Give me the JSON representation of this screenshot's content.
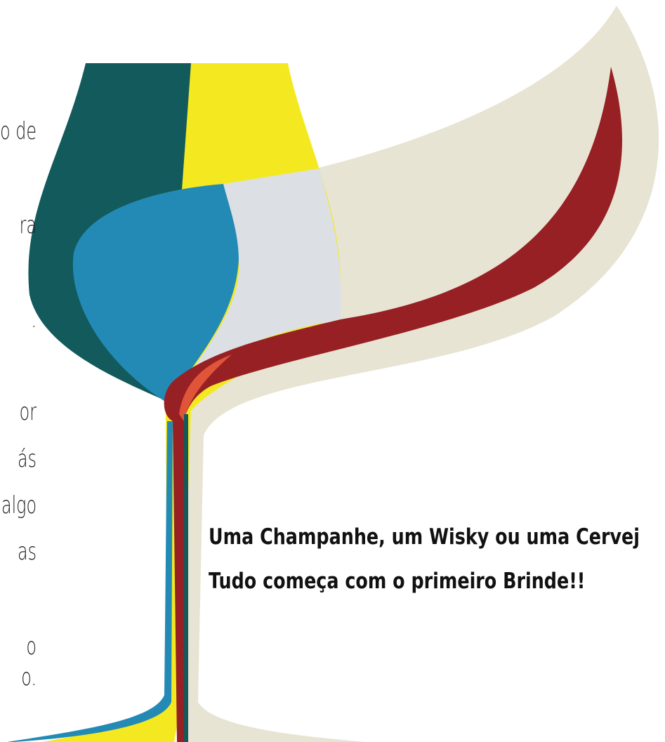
{
  "side_text": [
    "o de",
    "ra",
    ".",
    "or",
    "ás",
    "algo",
    "as",
    "o",
    "o."
  ],
  "headline": [
    "Uma Champanhe, um Wisky ou uma Cervej",
    "Tudo começa com o primeiro Brinde!!"
  ]
}
